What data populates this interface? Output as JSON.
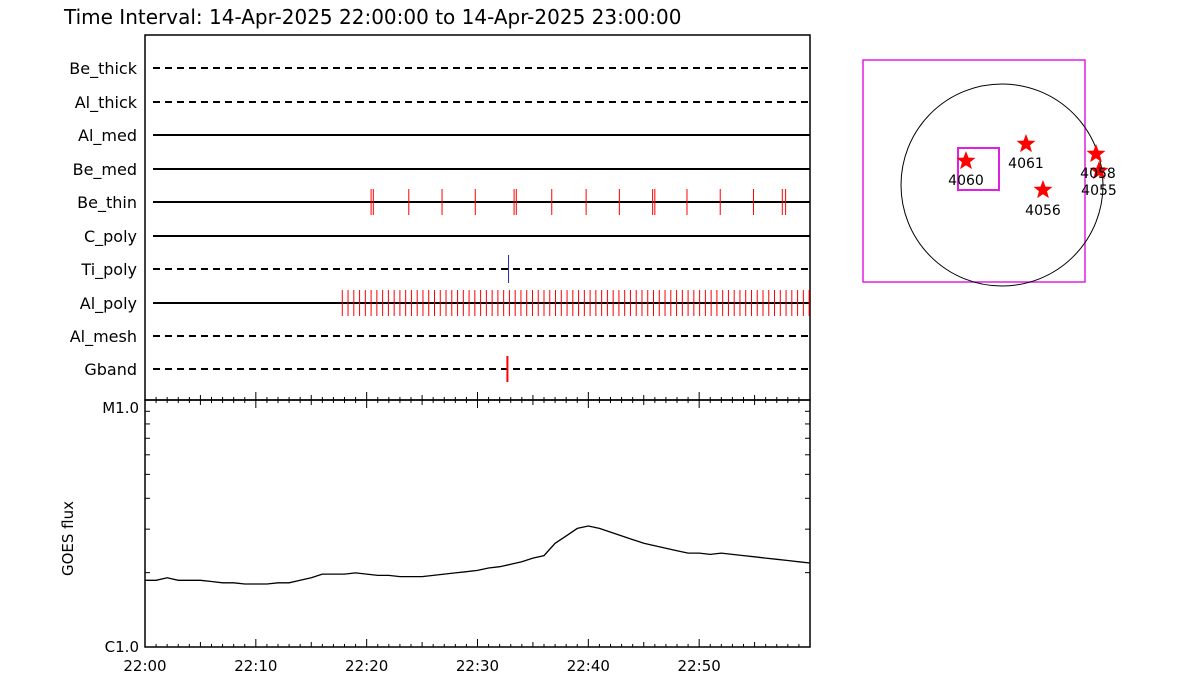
{
  "title": "Time Interval: 14-Apr-2025 22:00:00 to 14-Apr-2025 23:00:00",
  "colors": {
    "frame": "#000000",
    "event_red": "#ff0000",
    "event_blue": "#2a2aa8",
    "fov": "#e020e0",
    "star": "#ff0000"
  },
  "chart_data": [
    {
      "type": "event-timeline",
      "x_range_minutes": [
        0,
        60
      ],
      "x_tick_labels": [
        "22:00",
        "22:10",
        "22:20",
        "22:30",
        "22:40",
        "22:50"
      ],
      "x_tick_values": [
        0,
        10,
        20,
        30,
        40,
        50
      ],
      "rows": [
        {
          "label": "Be_thick",
          "style": "dashed",
          "events": [],
          "color": "red"
        },
        {
          "label": "Al_thick",
          "style": "dashed",
          "events": [],
          "color": "red"
        },
        {
          "label": "Al_med",
          "style": "solid",
          "events": [],
          "color": "red"
        },
        {
          "label": "Be_med",
          "style": "solid",
          "events": [],
          "color": "red"
        },
        {
          "label": "Be_thin",
          "style": "solid",
          "color": "red",
          "events": [
            20.4,
            20.6,
            23.8,
            26.8,
            29.8,
            33.3,
            33.5,
            36.7,
            39.8,
            42.8,
            45.8,
            46.0,
            48.9,
            51.9,
            54.9,
            57.5,
            57.8
          ]
        },
        {
          "label": "C_poly",
          "style": "solid",
          "events": [],
          "color": "red"
        },
        {
          "label": "Ti_poly",
          "style": "dashed",
          "color": "blue",
          "events": [
            32.8
          ]
        },
        {
          "label": "Al_poly",
          "style": "solid",
          "color": "red",
          "events": "dense_17.8_60_step0.5"
        },
        {
          "label": "Al_mesh",
          "style": "dashed",
          "events": [],
          "color": "red"
        },
        {
          "label": "Gband",
          "style": "dashed",
          "color": "red",
          "events": [
            32.7
          ]
        }
      ]
    },
    {
      "type": "line",
      "ylabel": "GOES flux",
      "y_tick_labels": [
        "C1.0",
        "M1.0"
      ],
      "y_scale": "log",
      "y_range_labels": [
        "C1.0",
        "M1.0"
      ],
      "x_minutes": [
        0,
        1,
        2,
        3,
        4,
        5,
        6,
        7,
        8,
        9,
        10,
        11,
        12,
        13,
        14,
        15,
        16,
        17,
        18,
        19,
        20,
        21,
        22,
        23,
        24,
        25,
        26,
        27,
        28,
        29,
        30,
        31,
        32,
        33,
        34,
        35,
        36,
        37,
        38,
        39,
        40,
        41,
        42,
        43,
        44,
        45,
        46,
        47,
        48,
        49,
        50,
        51,
        52,
        53,
        54,
        55,
        56,
        57,
        58,
        59,
        60
      ],
      "y_flux_fraction_of_decade": [
        0.27,
        0.27,
        0.28,
        0.27,
        0.27,
        0.27,
        0.265,
        0.26,
        0.26,
        0.255,
        0.255,
        0.255,
        0.26,
        0.26,
        0.27,
        0.28,
        0.295,
        0.295,
        0.295,
        0.3,
        0.295,
        0.29,
        0.29,
        0.285,
        0.285,
        0.285,
        0.29,
        0.295,
        0.3,
        0.305,
        0.31,
        0.32,
        0.325,
        0.335,
        0.345,
        0.36,
        0.37,
        0.42,
        0.45,
        0.48,
        0.49,
        0.48,
        0.465,
        0.45,
        0.435,
        0.42,
        0.41,
        0.4,
        0.39,
        0.38,
        0.38,
        0.375,
        0.38,
        0.375,
        0.37,
        0.365,
        0.36,
        0.355,
        0.35,
        0.345,
        0.34
      ]
    }
  ],
  "context_map": {
    "labels": [
      "4060",
      "4061",
      "4056",
      "4058",
      "4055"
    ]
  }
}
